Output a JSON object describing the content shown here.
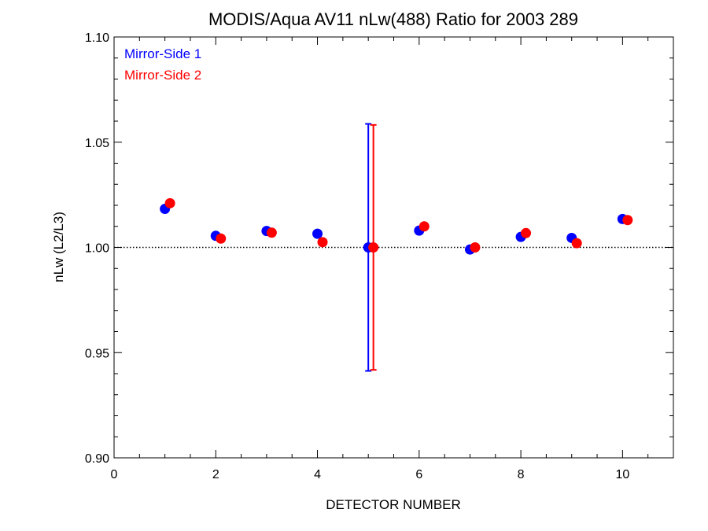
{
  "chart_data": {
    "type": "scatter",
    "title": "MODIS/Aqua AV11 nLw(488) Ratio for 2003 289",
    "xlabel": "DETECTOR NUMBER",
    "ylabel": "nLw (L2/L3)",
    "xlim": [
      0,
      11
    ],
    "ylim": [
      0.9,
      1.1
    ],
    "x_ticks": [
      0,
      2,
      4,
      6,
      8,
      10
    ],
    "x_tick_labels": [
      "0",
      "2",
      "4",
      "6",
      "8",
      "10"
    ],
    "y_ticks": [
      0.9,
      0.95,
      1.0,
      1.05,
      1.1
    ],
    "y_tick_labels": [
      "0.90",
      "0.95",
      "1.00",
      "1.05",
      "1.10"
    ],
    "reference_line": 1.0,
    "legend_position": "top-left",
    "series": [
      {
        "name": "Mirror-Side 1",
        "color": "#0000ff",
        "x": [
          1,
          2,
          3,
          4,
          5,
          6,
          7,
          8,
          9,
          10
        ],
        "y": [
          1.0183,
          1.0055,
          1.0078,
          1.0065,
          1.0,
          1.008,
          0.999,
          1.005,
          1.0045,
          1.0135
        ],
        "error_bar": {
          "x": 5,
          "low": 0.9413,
          "high": 1.0587
        }
      },
      {
        "name": "Mirror-Side 2",
        "color": "#ff0000",
        "x": [
          1.1,
          2.1,
          3.1,
          4.1,
          5.1,
          6.1,
          7.1,
          8.1,
          9.1,
          10.1
        ],
        "y": [
          1.021,
          1.0042,
          1.007,
          1.0025,
          1.0,
          1.01,
          1.0,
          1.0068,
          1.002,
          1.013
        ],
        "error_bar": {
          "x": 5.1,
          "low": 0.9418,
          "high": 1.0582
        }
      }
    ]
  }
}
